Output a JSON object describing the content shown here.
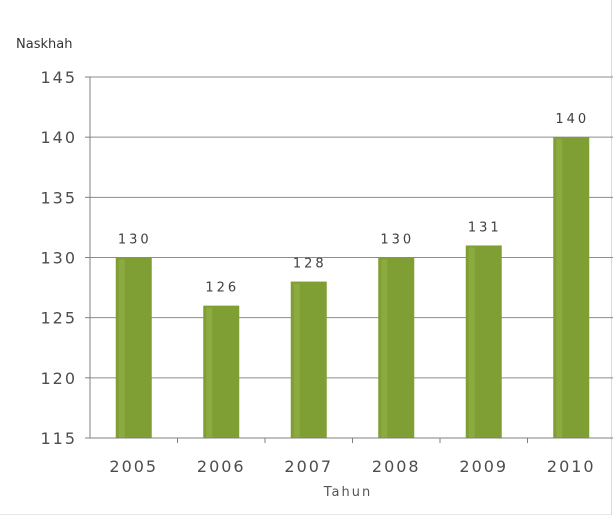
{
  "chart_data": {
    "type": "bar",
    "categories": [
      "2005",
      "2006",
      "2007",
      "2008",
      "2009",
      "2010"
    ],
    "values": [
      130,
      126,
      128,
      130,
      131,
      140
    ],
    "data_labels": [
      "130",
      "126",
      "128",
      "130",
      "131",
      "140"
    ],
    "xlabel": "Tahun",
    "ylabel": "Naskhah",
    "ylim": [
      115,
      145
    ],
    "yticks": [
      "115",
      "120",
      "125",
      "130",
      "135",
      "140",
      "145"
    ],
    "grid": true,
    "legend": "none",
    "colors": {
      "bar": "#7f9e34",
      "bar_highlight": "#9bba4f",
      "grid": "#8c8c8c"
    }
  }
}
